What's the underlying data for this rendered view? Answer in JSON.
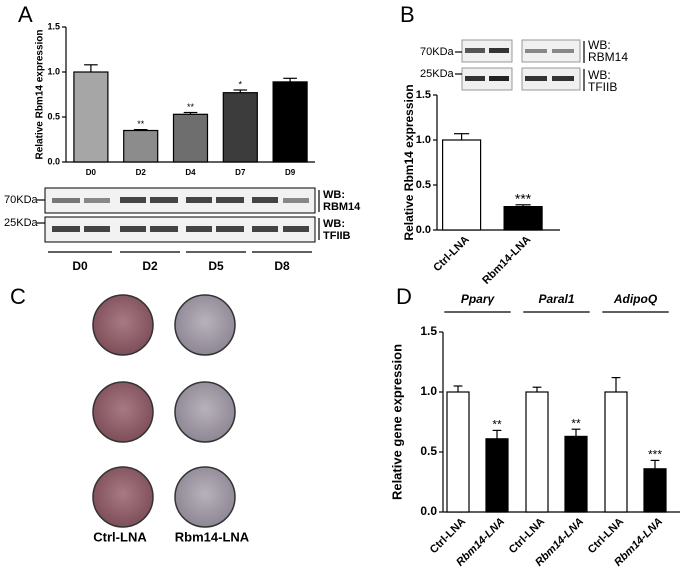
{
  "panels": [
    "A",
    "B",
    "C",
    "D"
  ],
  "chart_data": [
    {
      "type": "bar",
      "ylabel": "Relative Rbm14 expression",
      "categories": [
        "D0",
        "D2",
        "D4",
        "D7",
        "D9"
      ],
      "values": [
        1.0,
        0.35,
        0.53,
        0.77,
        0.89
      ],
      "errors": [
        0.08,
        0.01,
        0.02,
        0.03,
        0.04
      ],
      "colors": [
        "#a6a6a6",
        "#8c8c8c",
        "#6e6e6e",
        "#3c3c3c",
        "#000000"
      ],
      "significance": [
        null,
        "**",
        "**",
        "*",
        null
      ],
      "ylim": [
        0,
        1.5
      ],
      "yticks": [
        {
          "value": 0,
          "label": "0.0"
        },
        0.5,
        {
          "value": 1,
          "label": "1.0"
        },
        1.5
      ]
    },
    {
      "type": "bar",
      "ylabel": "Relative Rbm14 expression",
      "categories": [
        "Ctrl-LNA",
        "Rbm14-LNA"
      ],
      "values": [
        1.0,
        0.26
      ],
      "errors": [
        0.07,
        0.02
      ],
      "colors": [
        "#ffffff",
        "#000000"
      ],
      "significance": [
        null,
        "***"
      ],
      "ylim": [
        0,
        1.5
      ],
      "yticks": [
        {
          "value": 0,
          "label": "0.0"
        },
        0.5,
        {
          "value": 1,
          "label": "1.0"
        },
        1.5
      ]
    },
    {
      "type": "grouped-bar",
      "ylabel": "Relative gene expression",
      "groups": [
        "Pparγ",
        "Paral1",
        "AdipoQ"
      ],
      "series": [
        {
          "name": "Ctrl-LNA",
          "color": "#ffffff",
          "values": [
            1.0,
            1.0,
            1.0
          ],
          "errors": [
            0.05,
            0.04,
            0.12
          ],
          "significance": [
            null,
            null,
            null
          ]
        },
        {
          "name": "Rbm14-LNA",
          "color": "#000000",
          "values": [
            0.61,
            0.63,
            0.36
          ],
          "errors": [
            0.07,
            0.06,
            0.07
          ],
          "significance": [
            "**",
            "**",
            "***"
          ]
        }
      ],
      "ylim": [
        0,
        1.5
      ],
      "yticks": [
        {
          "value": 0,
          "label": "0.0"
        },
        0.5,
        {
          "value": 1,
          "label": "1.0"
        },
        1.5
      ]
    }
  ],
  "blots": [
    {
      "markers": [
        "70KDa",
        "25KDa"
      ],
      "labels": [
        [
          "WB:",
          "RBM14"
        ],
        [
          "WB:",
          "TFIIB"
        ]
      ],
      "lanes": [
        "D0",
        "D2",
        "D5",
        "D8"
      ]
    },
    {
      "markers": [
        "70KDa",
        "25KDa"
      ],
      "labels": [
        [
          "WB:",
          "RBM14"
        ],
        [
          "WB:",
          "TFIIB"
        ]
      ]
    }
  ],
  "plate": {
    "labels": [
      "Ctrl-LNA",
      "Rbm14-LNA"
    ]
  }
}
